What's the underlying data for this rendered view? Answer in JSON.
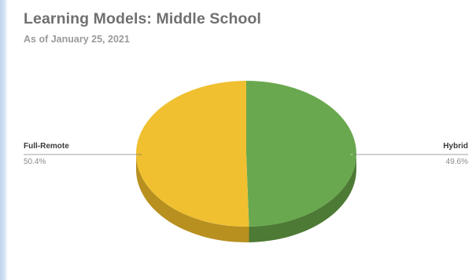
{
  "chart_data": {
    "type": "pie",
    "title": "Learning Models: Middle School",
    "subtitle": "As of January 25, 2021",
    "categories": [
      "Full-Remote",
      "Hybrid"
    ],
    "values": [
      50.4,
      49.6
    ],
    "value_labels": [
      "50.4%",
      "49.6%"
    ],
    "colors": [
      "#f0c030",
      "#6aa84f"
    ],
    "side_colors": [
      "#b89020",
      "#4d7a35"
    ],
    "three_d": true,
    "legend": "none"
  }
}
